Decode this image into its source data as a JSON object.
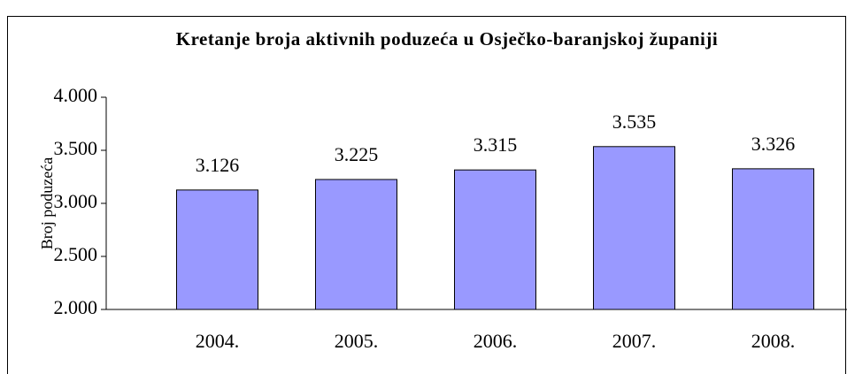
{
  "chart_data": {
    "type": "bar",
    "title": "Kretanje broja aktivnih poduzeća u Osječko-baranjskoj županiji",
    "y_label": "Broj poduzeća",
    "categories": [
      "2004.",
      "2005.",
      "2006.",
      "2007.",
      "2008."
    ],
    "values": [
      3126,
      3225,
      3315,
      3535,
      3326
    ],
    "value_labels": [
      "3.126",
      "3.225",
      "3.315",
      "3.535",
      "3.326"
    ],
    "color": "#9999ff",
    "ylim": [
      2000,
      4000
    ],
    "yticks": [
      {
        "value": 2000,
        "label": "2.000"
      },
      {
        "value": 2500,
        "label": "2.500"
      },
      {
        "value": 3000,
        "label": "3.000"
      },
      {
        "value": 3500,
        "label": "3.500"
      },
      {
        "value": 4000,
        "label": "4.000"
      }
    ],
    "grid": false
  }
}
